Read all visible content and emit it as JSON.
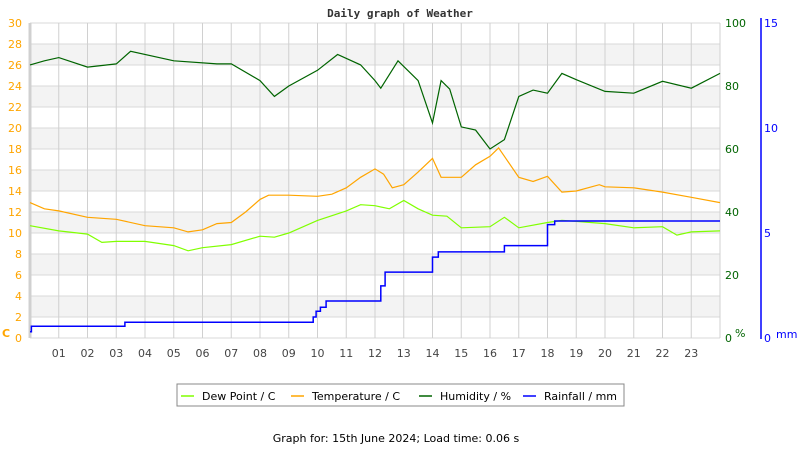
{
  "chart_data": {
    "type": "line",
    "title": "Daily graph of Weather",
    "x_unit": "hour",
    "xlim": [
      0,
      24
    ],
    "x_tick_labels": [
      "01",
      "02",
      "03",
      "04",
      "05",
      "06",
      "07",
      "08",
      "09",
      "10",
      "11",
      "12",
      "13",
      "14",
      "15",
      "16",
      "17",
      "18",
      "19",
      "20",
      "21",
      "22",
      "23"
    ],
    "grid": true,
    "legend_position": "bottom",
    "axes": {
      "left": {
        "label": "C",
        "range": [
          0,
          30
        ],
        "ticks": [
          0,
          2,
          4,
          6,
          8,
          10,
          12,
          14,
          16,
          18,
          20,
          22,
          24,
          26,
          28,
          30
        ],
        "color": "#ffa500"
      },
      "right": {
        "label": "%",
        "range": [
          0,
          100
        ],
        "ticks": [
          0,
          20,
          40,
          60,
          80,
          100
        ],
        "color": "#006400"
      },
      "rain": {
        "label": "mm",
        "range": [
          0,
          15
        ],
        "ticks": [
          0,
          5,
          10,
          15
        ],
        "color": "#0000ff"
      }
    },
    "series": [
      {
        "name": "Dew Point / C",
        "axis": "left",
        "color": "#80ff00",
        "x": [
          0,
          1,
          2,
          2.5,
          3,
          4,
          5,
          5.5,
          6,
          7,
          8,
          8.5,
          9,
          10,
          11,
          11.5,
          12,
          12.5,
          13,
          13.5,
          14,
          14.5,
          15,
          16,
          16.5,
          17,
          18,
          18.5,
          19,
          20,
          21,
          22,
          22.5,
          23,
          24
        ],
        "y": [
          10.7,
          10.2,
          9.9,
          9.1,
          9.2,
          9.2,
          8.8,
          8.3,
          8.6,
          8.9,
          9.7,
          9.6,
          10.0,
          11.2,
          12.1,
          12.7,
          12.6,
          12.3,
          13.1,
          12.3,
          11.7,
          11.6,
          10.5,
          10.6,
          11.5,
          10.5,
          11.0,
          11.2,
          11.1,
          10.9,
          10.5,
          10.6,
          9.8,
          10.1,
          10.2
        ]
      },
      {
        "name": "Temperature / C",
        "axis": "left",
        "color": "#ffa500",
        "x": [
          0,
          0.5,
          1,
          2,
          3,
          4,
          5,
          5.5,
          6,
          6.5,
          7,
          7.5,
          8,
          8.3,
          9,
          10,
          10.5,
          11,
          11.5,
          12,
          12.3,
          12.6,
          13,
          13.5,
          14,
          14.3,
          15,
          15.5,
          16,
          16.3,
          16.5,
          17,
          17.5,
          18,
          18.5,
          19,
          19.8,
          20,
          21,
          22,
          23,
          24
        ],
        "y": [
          12.9,
          12.3,
          12.1,
          11.5,
          11.3,
          10.7,
          10.5,
          10.1,
          10.3,
          10.9,
          11.0,
          12.0,
          13.2,
          13.6,
          13.6,
          13.5,
          13.7,
          14.3,
          15.3,
          16.1,
          15.6,
          14.3,
          14.6,
          15.8,
          17.1,
          15.3,
          15.3,
          16.5,
          17.3,
          18.1,
          17.3,
          15.3,
          14.9,
          15.4,
          13.9,
          14.0,
          14.6,
          14.4,
          14.3,
          13.9,
          13.4,
          12.9
        ]
      },
      {
        "name": "Humidity / %",
        "axis": "right",
        "color": "#006400",
        "x": [
          0,
          0.5,
          1,
          2,
          3,
          3.5,
          5,
          6.5,
          7,
          8,
          8.5,
          9,
          10,
          10.7,
          11.5,
          12,
          12.2,
          12.8,
          13.5,
          14,
          14.3,
          14.6,
          15,
          15.5,
          16,
          16.5,
          17,
          17.5,
          18,
          18.5,
          19,
          20,
          21,
          22,
          23,
          24
        ],
        "y": [
          86.7,
          88,
          89,
          86,
          87,
          91,
          88,
          87,
          87,
          81.7,
          76.7,
          80,
          85,
          90,
          86.7,
          81.7,
          79.3,
          88,
          81.7,
          68.3,
          81.7,
          79,
          67,
          66,
          60,
          63,
          76.7,
          78.7,
          77.7,
          84,
          82,
          78.3,
          77.7,
          81.5,
          79.3,
          84
        ]
      },
      {
        "name": "Rainfall / mm",
        "axis": "rain",
        "color": "#0000ff",
        "step": true,
        "x": [
          0,
          0.05,
          3.3,
          9.85,
          9.95,
          10.1,
          10.3,
          12.2,
          12.35,
          14.0,
          14.2,
          16.5,
          18.0,
          18.25,
          24
        ],
        "y": [
          0.3,
          0.56,
          0.75,
          1.0,
          1.27,
          1.46,
          1.76,
          2.48,
          3.14,
          3.85,
          4.1,
          4.4,
          5.4,
          5.57,
          5.57
        ]
      }
    ]
  },
  "footer": "Graph for: 15th June 2024; Load time: 0.06 s"
}
